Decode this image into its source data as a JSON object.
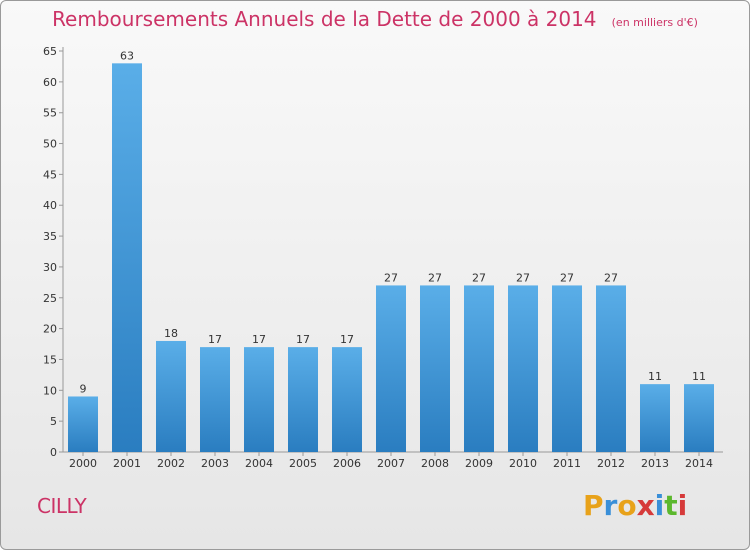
{
  "chart_data": {
    "type": "bar",
    "title": "Remboursements Annuels de la Dette de 2000 à 2014",
    "unit": "(en milliers d'€)",
    "categories": [
      "2000",
      "2001",
      "2002",
      "2003",
      "2004",
      "2005",
      "2006",
      "2007",
      "2008",
      "2009",
      "2010",
      "2011",
      "2012",
      "2013",
      "2014"
    ],
    "values": [
      9,
      63,
      18,
      17,
      17,
      17,
      17,
      27,
      27,
      27,
      27,
      27,
      27,
      11,
      11
    ],
    "ylim": [
      0,
      65
    ],
    "yticks": [
      0,
      5,
      10,
      15,
      20,
      25,
      30,
      35,
      40,
      45,
      50,
      55,
      60,
      65
    ],
    "grid": "none",
    "bar_color_top": "#5aaee8",
    "bar_color_bottom": "#2a7dc0"
  },
  "commune": "CILLY",
  "logo": {
    "text": "Proxiti",
    "letters": [
      {
        "char": "P",
        "color": "#e8a21a"
      },
      {
        "char": "r",
        "color": "#3a8fd8"
      },
      {
        "char": "o",
        "color": "#e8a21a"
      },
      {
        "char": "x",
        "color": "#d63a3a"
      },
      {
        "char": "i",
        "color": "#3a8fd8"
      },
      {
        "char": "t",
        "color": "#5cb82e"
      },
      {
        "char": "i",
        "color": "#d63a3a"
      }
    ]
  },
  "colors": {
    "title": "#cc3366",
    "axis_text": "#333333"
  }
}
